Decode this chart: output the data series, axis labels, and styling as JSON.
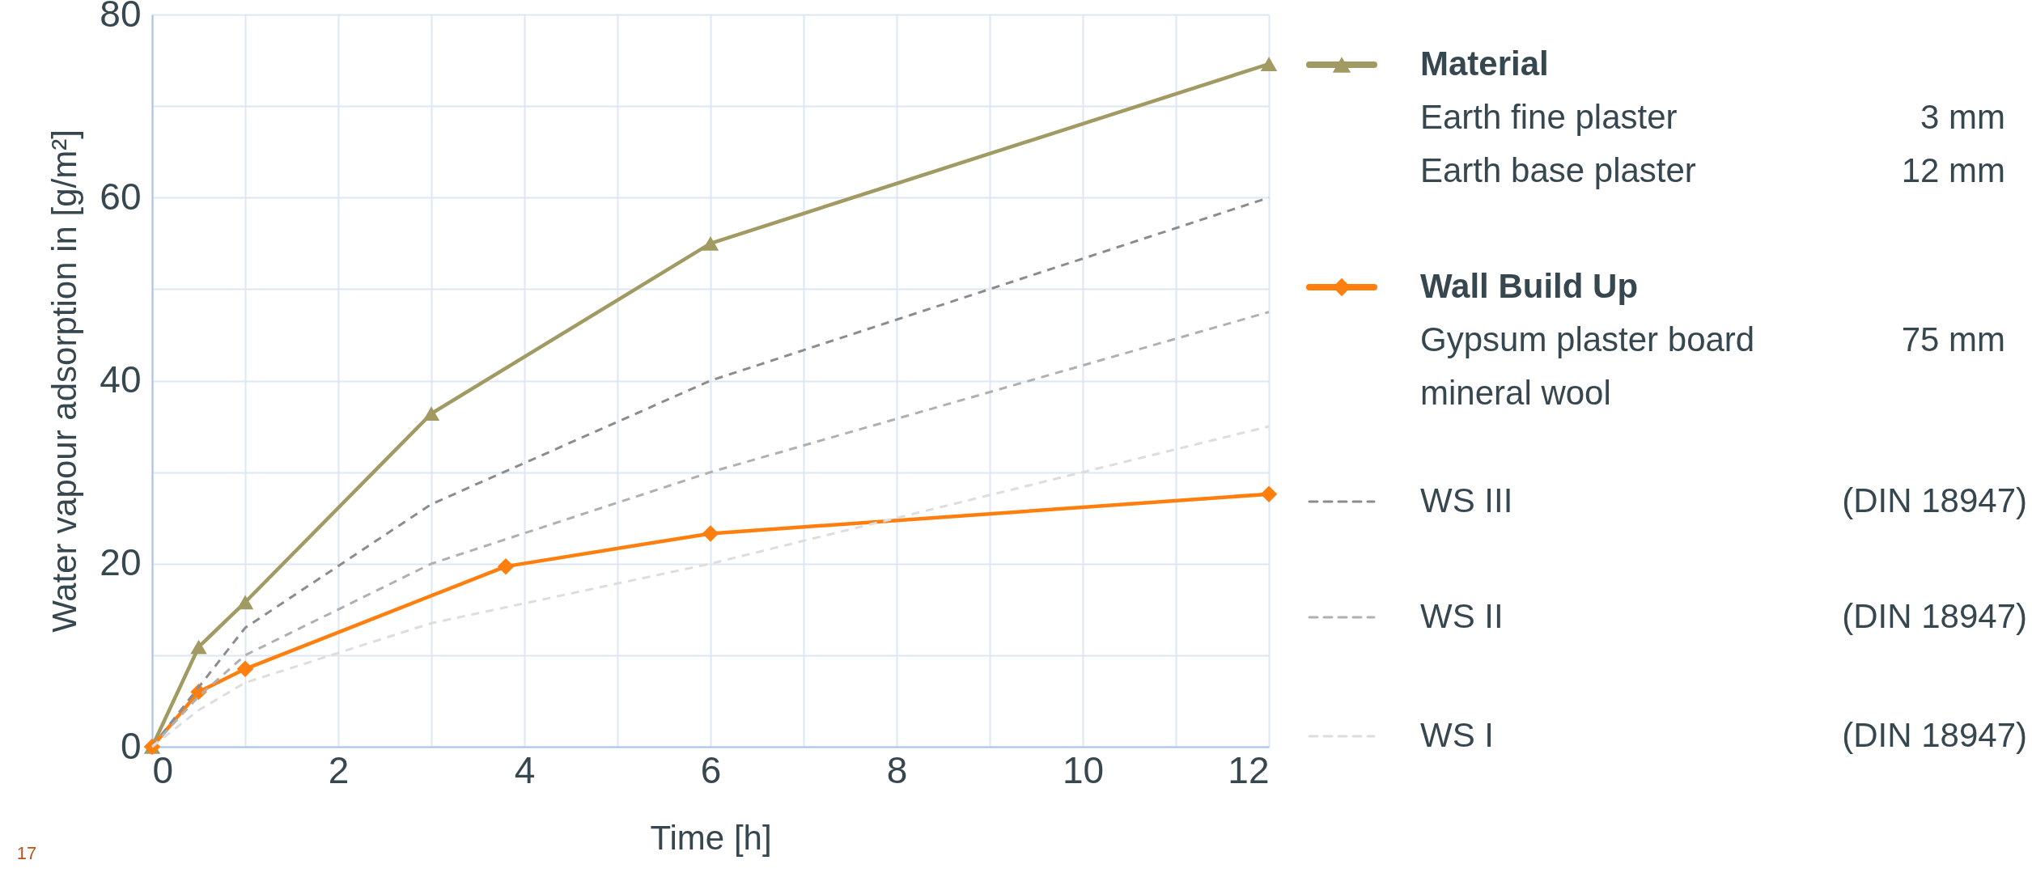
{
  "chart_data": {
    "type": "line",
    "xlabel": "Time [h]",
    "ylabel": "Water vapour adsorption in [g/m²]",
    "xlim": [
      0,
      12
    ],
    "ylim": [
      0,
      80
    ],
    "xticks": [
      0,
      {
        "value": 1,
        "label": null
      },
      2,
      {
        "value": 3,
        "label": null
      },
      4,
      {
        "value": 5,
        "label": null
      },
      6,
      {
        "value": 7,
        "label": null
      },
      8,
      {
        "value": 9,
        "label": null
      },
      10,
      {
        "value": 11,
        "label": null
      },
      12
    ],
    "yticks": [
      0,
      {
        "value": 10,
        "label": null
      },
      20,
      {
        "value": 30,
        "label": null
      },
      40,
      {
        "value": 50,
        "label": null
      },
      60,
      {
        "value": 70,
        "label": null
      },
      80
    ],
    "grid": true,
    "legend": "right",
    "series": [
      {
        "name": "Material",
        "color": "#a29a63",
        "marker": "triangle",
        "line_style": "solid",
        "x": [
          0,
          0.5,
          1,
          3,
          6,
          12
        ],
        "values": [
          0,
          10.9,
          15.8,
          36.4,
          55,
          74.6
        ]
      },
      {
        "name": "Wall Build Up",
        "color": "#ff7f0e",
        "marker": "diamond",
        "line_style": "solid",
        "x": [
          0,
          0.5,
          1,
          3.8,
          6,
          12
        ],
        "values": [
          0,
          6,
          8.5,
          19.7,
          23.3,
          27.6
        ]
      },
      {
        "name": "WS III",
        "color": "#8c8c8c",
        "marker": "none",
        "line_style": "dashed",
        "x": [
          0,
          0.5,
          1,
          3,
          6,
          12
        ],
        "values": [
          0,
          6.5,
          13,
          26.5,
          40,
          60
        ]
      },
      {
        "name": "WS II",
        "color": "#b0b0b0",
        "marker": "none",
        "line_style": "dashed",
        "x": [
          0,
          0.5,
          1,
          3,
          6,
          12
        ],
        "values": [
          0,
          5.5,
          10,
          20,
          30,
          47.5
        ]
      },
      {
        "name": "WS I",
        "color": "#dddddd",
        "marker": "none",
        "line_style": "dashed",
        "x": [
          0,
          0.5,
          1,
          3,
          6,
          12
        ],
        "values": [
          0,
          4,
          7,
          13.5,
          20,
          35
        ]
      }
    ],
    "annotations": [
      "Earth fine plaster",
      "3 mm",
      "Earth base plaster",
      "12 mm",
      "Gypsum plaster board",
      "75 mm",
      "mineral wool",
      "(DIN 18947)",
      "(DIN 18947)",
      "(DIN 18947)",
      "17"
    ]
  }
}
